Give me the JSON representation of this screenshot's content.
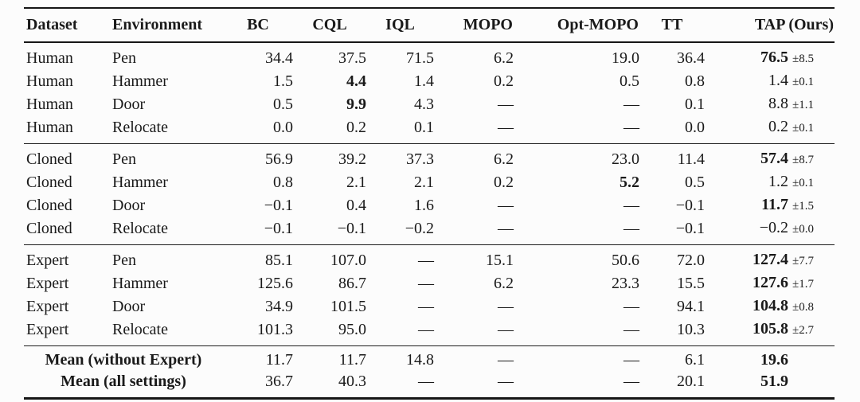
{
  "colors": {
    "text": "#1a1a1a",
    "rule": "#161616",
    "background": "#fcfcfc"
  },
  "table": {
    "columns": [
      {
        "key": "dataset",
        "label": "Dataset",
        "cls": "c-left"
      },
      {
        "key": "environment",
        "label": "Environment",
        "cls": "c-left"
      },
      {
        "key": "bc",
        "label": "BC",
        "cls": "c-num"
      },
      {
        "key": "cql",
        "label": "CQL",
        "cls": "c-num"
      },
      {
        "key": "iql",
        "label": "IQL",
        "cls": "c-num"
      },
      {
        "key": "mopo",
        "label": "MOPO",
        "cls": "c-num"
      },
      {
        "key": "opt_mopo",
        "label": "Opt-MOPO",
        "cls": "c-num"
      },
      {
        "key": "tt",
        "label": "TT",
        "cls": "c-num"
      },
      {
        "key": "tap",
        "label": "TAP (Ours)",
        "cls": "c-tap"
      }
    ],
    "missing_marker": "—",
    "sections": [
      {
        "name": "human",
        "rows": [
          {
            "dataset": "Human",
            "environment": "Pen",
            "bc": "34.4",
            "cql": "37.5",
            "iql": "71.5",
            "mopo": "6.2",
            "opt_mopo": "19.0",
            "tt": "36.4",
            "tap": "76.5",
            "tap_pm": "±8.5",
            "bold": [
              "tap"
            ]
          },
          {
            "dataset": "Human",
            "environment": "Hammer",
            "bc": "1.5",
            "cql": "4.4",
            "iql": "1.4",
            "mopo": "0.2",
            "opt_mopo": "0.5",
            "tt": "0.8",
            "tap": "1.4",
            "tap_pm": "±0.1",
            "bold": [
              "cql"
            ]
          },
          {
            "dataset": "Human",
            "environment": "Door",
            "bc": "0.5",
            "cql": "9.9",
            "iql": "4.3",
            "mopo": "—",
            "opt_mopo": "—",
            "tt": "0.1",
            "tap": "8.8",
            "tap_pm": "±1.1",
            "bold": [
              "cql"
            ]
          },
          {
            "dataset": "Human",
            "environment": "Relocate",
            "bc": "0.0",
            "cql": "0.2",
            "iql": "0.1",
            "mopo": "—",
            "opt_mopo": "—",
            "tt": "0.0",
            "tap": "0.2",
            "tap_pm": "±0.1",
            "bold": []
          }
        ]
      },
      {
        "name": "cloned",
        "rows": [
          {
            "dataset": "Cloned",
            "environment": "Pen",
            "bc": "56.9",
            "cql": "39.2",
            "iql": "37.3",
            "mopo": "6.2",
            "opt_mopo": "23.0",
            "tt": "11.4",
            "tap": "57.4",
            "tap_pm": "±8.7",
            "bold": [
              "tap"
            ]
          },
          {
            "dataset": "Cloned",
            "environment": "Hammer",
            "bc": "0.8",
            "cql": "2.1",
            "iql": "2.1",
            "mopo": "0.2",
            "opt_mopo": "5.2",
            "tt": "0.5",
            "tap": "1.2",
            "tap_pm": "±0.1",
            "bold": [
              "opt_mopo"
            ]
          },
          {
            "dataset": "Cloned",
            "environment": "Door",
            "bc": "−0.1",
            "cql": "0.4",
            "iql": "1.6",
            "mopo": "—",
            "opt_mopo": "—",
            "tt": "−0.1",
            "tap": "11.7",
            "tap_pm": "±1.5",
            "bold": [
              "tap"
            ]
          },
          {
            "dataset": "Cloned",
            "environment": "Relocate",
            "bc": "−0.1",
            "cql": "−0.1",
            "iql": "−0.2",
            "mopo": "—",
            "opt_mopo": "—",
            "tt": "−0.1",
            "tap": "−0.2",
            "tap_pm": "±0.0",
            "bold": []
          }
        ]
      },
      {
        "name": "expert",
        "rows": [
          {
            "dataset": "Expert",
            "environment": "Pen",
            "bc": "85.1",
            "cql": "107.0",
            "iql": "—",
            "mopo": "15.1",
            "opt_mopo": "50.6",
            "tt": "72.0",
            "tap": "127.4",
            "tap_pm": "±7.7",
            "bold": [
              "tap"
            ]
          },
          {
            "dataset": "Expert",
            "environment": "Hammer",
            "bc": "125.6",
            "cql": "86.7",
            "iql": "—",
            "mopo": "6.2",
            "opt_mopo": "23.3",
            "tt": "15.5",
            "tap": "127.6",
            "tap_pm": "±1.7",
            "bold": [
              "tap"
            ]
          },
          {
            "dataset": "Expert",
            "environment": "Door",
            "bc": "34.9",
            "cql": "101.5",
            "iql": "—",
            "mopo": "—",
            "opt_mopo": "—",
            "tt": "94.1",
            "tap": "104.8",
            "tap_pm": "±0.8",
            "bold": [
              "tap"
            ]
          },
          {
            "dataset": "Expert",
            "environment": "Relocate",
            "bc": "101.3",
            "cql": "95.0",
            "iql": "—",
            "mopo": "—",
            "opt_mopo": "—",
            "tt": "10.3",
            "tap": "105.8",
            "tap_pm": "±2.7",
            "bold": [
              "tap"
            ]
          }
        ]
      }
    ],
    "summary_rows": [
      {
        "label": "Mean (without Expert)",
        "bc": "11.7",
        "cql": "11.7",
        "iql": "14.8",
        "mopo": "—",
        "opt_mopo": "—",
        "tt": "6.1",
        "tap": "19.6",
        "tap_pm": "",
        "bold": [
          "tap"
        ]
      },
      {
        "label": "Mean (all settings)",
        "bc": "36.7",
        "cql": "40.3",
        "iql": "—",
        "mopo": "—",
        "opt_mopo": "—",
        "tt": "20.1",
        "tap": "51.9",
        "tap_pm": "",
        "bold": [
          "tap"
        ]
      }
    ]
  }
}
